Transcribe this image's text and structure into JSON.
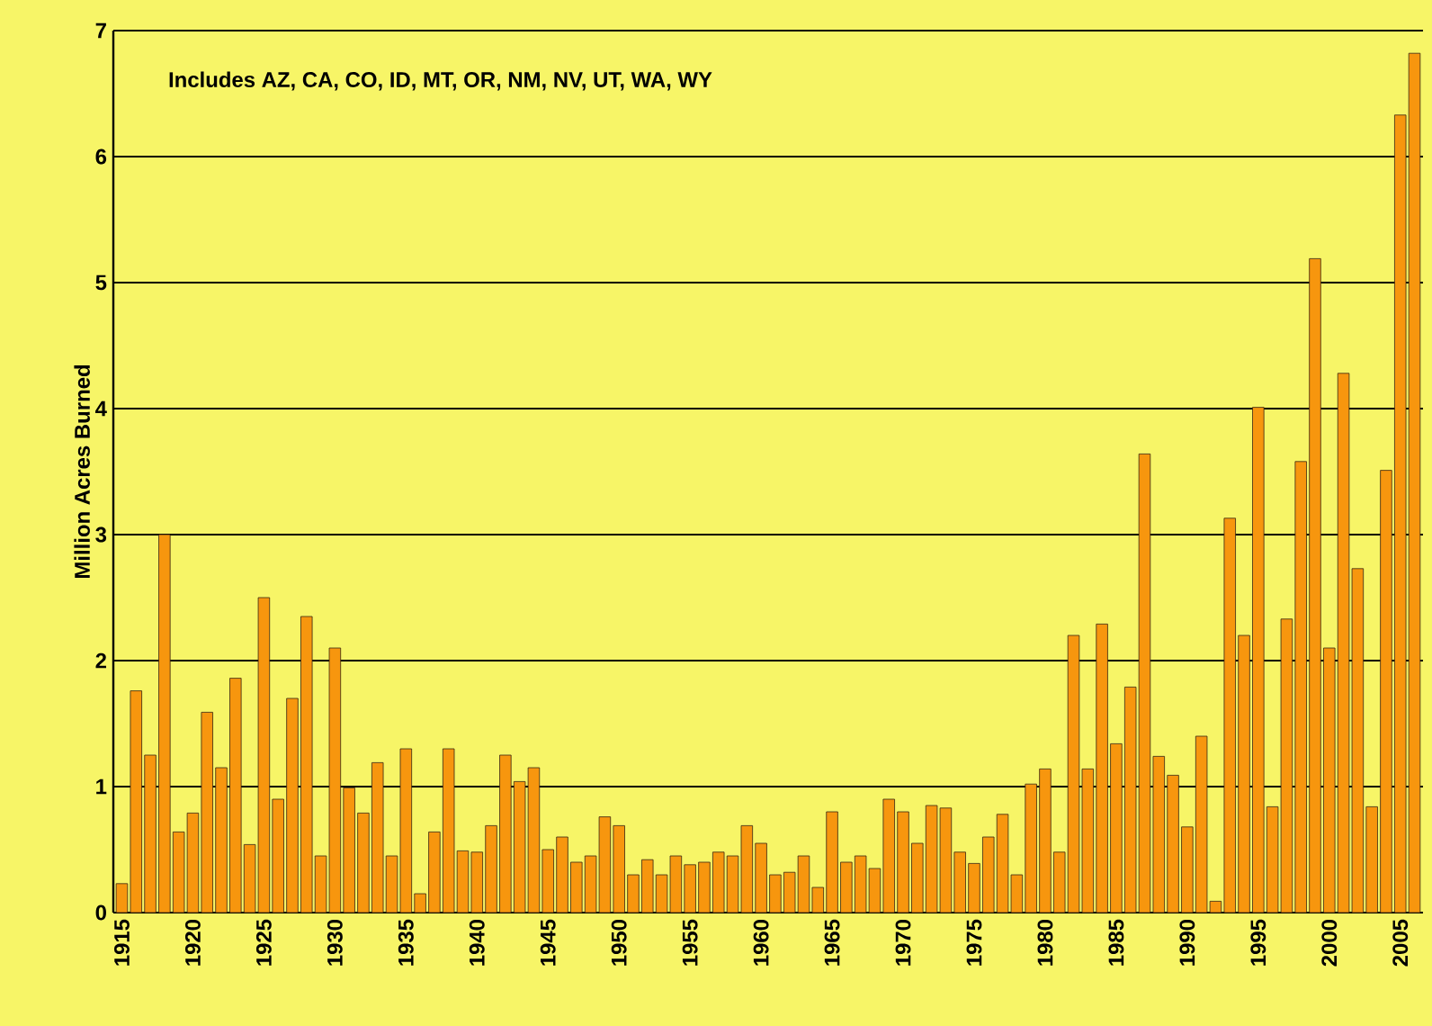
{
  "chart_data": {
    "type": "bar",
    "ylabel": "Million Acres Burned",
    "annotations": [
      "Includes AZ, CA, CO, ID, MT, OR, NM, NV, UT, WA, WY"
    ],
    "categories": [
      "1915",
      null,
      null,
      null,
      null,
      "1920",
      null,
      null,
      null,
      null,
      "1925",
      null,
      null,
      null,
      null,
      "1930",
      null,
      null,
      null,
      null,
      "1935",
      null,
      null,
      null,
      null,
      "1940",
      null,
      null,
      null,
      null,
      "1945",
      null,
      null,
      null,
      null,
      "1950",
      null,
      null,
      null,
      null,
      "1955",
      null,
      null,
      null,
      null,
      "1960",
      null,
      null,
      null,
      null,
      "1965",
      null,
      null,
      null,
      null,
      "1970",
      null,
      null,
      null,
      null,
      "1975",
      null,
      null,
      null,
      null,
      "1980",
      null,
      null,
      null,
      null,
      "1985",
      null,
      null,
      null,
      null,
      "1990",
      null,
      null,
      null,
      null,
      "1995",
      null,
      null,
      null,
      null,
      "2000",
      null,
      null,
      null,
      null,
      "2005",
      null
    ],
    "values": [
      0.23,
      1.76,
      1.25,
      3.0,
      0.64,
      0.79,
      1.59,
      1.15,
      1.86,
      0.54,
      2.5,
      0.9,
      1.7,
      2.35,
      0.45,
      2.1,
      0.99,
      0.79,
      1.19,
      0.45,
      1.3,
      0.15,
      0.64,
      1.3,
      0.49,
      0.48,
      0.69,
      1.25,
      1.04,
      1.15,
      0.5,
      0.6,
      0.4,
      0.45,
      0.76,
      0.69,
      0.3,
      0.42,
      0.3,
      0.45,
      0.38,
      0.4,
      0.48,
      0.45,
      0.69,
      0.55,
      0.3,
      0.32,
      0.45,
      0.2,
      0.8,
      0.4,
      0.45,
      0.35,
      0.9,
      0.8,
      0.55,
      0.85,
      0.83,
      0.48,
      0.39,
      0.6,
      0.78,
      0.3,
      1.02,
      1.14,
      0.48,
      2.2,
      1.14,
      2.29,
      1.34,
      1.79,
      3.64,
      1.24,
      1.09,
      0.68,
      1.4,
      0.09,
      3.13,
      2.2,
      4.01,
      0.84,
      2.33,
      3.58,
      5.19,
      2.1,
      4.28,
      2.73,
      0.84,
      3.51,
      6.33,
      6.82
    ],
    "color": "#f7960e",
    "ylim": [
      0,
      7
    ],
    "yticks": [
      0,
      1,
      2,
      3,
      4,
      5,
      6,
      7
    ],
    "grid": "y"
  }
}
